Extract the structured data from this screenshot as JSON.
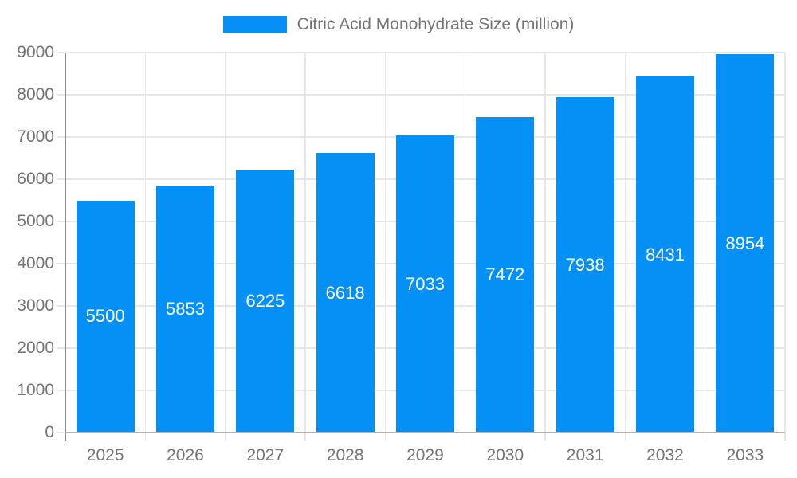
{
  "chart_data": {
    "type": "bar",
    "title": "Citric Acid Monohydrate Size (million)",
    "categories": [
      "2025",
      "2026",
      "2027",
      "2028",
      "2029",
      "2030",
      "2031",
      "2032",
      "2033"
    ],
    "series": [
      {
        "name": "Citric Acid Monohydrate Size (million)",
        "values": [
          5500,
          5853,
          6225,
          6618,
          7033,
          7472,
          7938,
          8431,
          8954
        ]
      }
    ],
    "xlabel": "",
    "ylabel": "",
    "ylim": [
      0,
      9000
    ],
    "ytick_step": 1000,
    "ytick_labels": [
      "0",
      "1000",
      "2000",
      "3000",
      "4000",
      "5000",
      "6000",
      "7000",
      "8000",
      "9000"
    ],
    "grid": true,
    "legend_position": "top",
    "value_labels_position": "inside-center",
    "bar_width_fraction": 0.73,
    "colors": {
      "bar": "#0590F5",
      "axis_text": "#757575",
      "legend_text": "#757575",
      "value_label": "#ffffff",
      "grid": "#e7e7e7",
      "axis_line": "#8c8c8c",
      "baseline": "#b3b3b3",
      "background": "#ffffff"
    }
  }
}
